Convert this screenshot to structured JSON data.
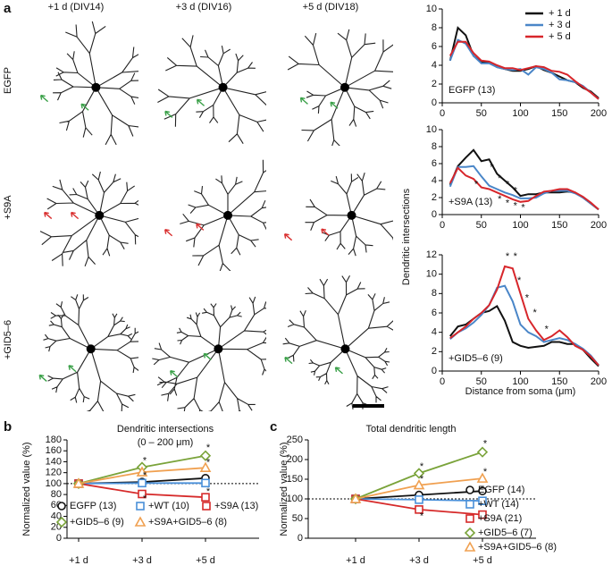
{
  "panel_labels": [
    "a",
    "b",
    "c"
  ],
  "image_panel": {
    "columns": [
      "+1 d (DIV14)",
      "+3 d (DIV16)",
      "+5 d (DIV18)"
    ],
    "rows": [
      "EGFP",
      "+S9A",
      "+GID5–6"
    ]
  },
  "chart_data": [
    {
      "type": "line",
      "annotation": "EGFP (13)",
      "legend": "upper right",
      "x": [
        10,
        20,
        30,
        40,
        50,
        60,
        70,
        80,
        90,
        100,
        110,
        120,
        130,
        140,
        150,
        160,
        170,
        180,
        190,
        200
      ],
      "xlim": [
        0,
        200
      ],
      "xticks": [
        0,
        50,
        100,
        150,
        200
      ],
      "ylim": [
        0,
        10
      ],
      "yticks": [
        0,
        2,
        4,
        6,
        8,
        10
      ],
      "series": [
        {
          "name": "+ 1 d",
          "color": "#111111",
          "values": [
            4.5,
            8,
            7.2,
            5,
            4.3,
            4.3,
            3.8,
            3.6,
            3.4,
            3.4,
            3.6,
            3.9,
            3.5,
            3.2,
            2.8,
            2.4,
            2.2,
            1.6,
            1.2,
            0.5
          ]
        },
        {
          "name": "+ 3 d",
          "color": "#4a86c8",
          "values": [
            4.5,
            6.7,
            6.3,
            5,
            4.2,
            4.2,
            3.8,
            3.6,
            3.5,
            3.6,
            3,
            3.8,
            3.6,
            3.2,
            2.5,
            2.4,
            2.2,
            1.8,
            1.1,
            0.4
          ]
        },
        {
          "name": "+ 5 d",
          "color": "#d7262b",
          "values": [
            5,
            6.5,
            6.5,
            5.3,
            4.5,
            4.4,
            4,
            3.7,
            3.7,
            3.5,
            3.7,
            3.9,
            3.8,
            3.4,
            3.3,
            3,
            2.3,
            1.7,
            1.1,
            0.4
          ]
        }
      ]
    },
    {
      "type": "line",
      "annotation": "+S9A (13)",
      "ylabel": "Dendritic intersections",
      "x": [
        10,
        20,
        30,
        40,
        50,
        60,
        70,
        80,
        90,
        100,
        110,
        120,
        130,
        140,
        150,
        160,
        170,
        180,
        190,
        200
      ],
      "xlim": [
        0,
        200
      ],
      "xticks": [
        0,
        50,
        100,
        150,
        200
      ],
      "ylim": [
        0,
        10
      ],
      "yticks": [
        0,
        2,
        4,
        6,
        8,
        10
      ],
      "series": [
        {
          "color": "#111111",
          "values": [
            3.5,
            5.7,
            6.7,
            7.6,
            6.3,
            6.5,
            4.8,
            4,
            3.2,
            2.2,
            2.4,
            2.4,
            2.6,
            2.6,
            2.6,
            2.7,
            2.6,
            2,
            1.3,
            0.6
          ]
        },
        {
          "color": "#4a86c8",
          "values": [
            3.3,
            5.6,
            5.6,
            5.7,
            4.5,
            3.4,
            3,
            2.6,
            2.3,
            1.9,
            1.9,
            2,
            2.5,
            2.8,
            2.8,
            2.8,
            2.5,
            2,
            1.3,
            0.6
          ]
        },
        {
          "color": "#d7262b",
          "values": [
            3.7,
            5.5,
            4.6,
            4.2,
            3.2,
            3,
            2.6,
            2.2,
            1.8,
            1.5,
            1.6,
            2.2,
            2.7,
            2.8,
            3,
            3,
            2.6,
            2.1,
            1.4,
            0.6
          ]
        }
      ],
      "significance": [
        {
          "text": "*",
          "x": 40,
          "y": 3.5
        },
        {
          "text": "*",
          "x": 60,
          "y": 5.5
        },
        {
          "text": "*",
          "x": 70,
          "y": 4.2
        },
        {
          "text": "*",
          "x": 70,
          "y": 1.8
        },
        {
          "text": "*",
          "x": 80,
          "y": 3.5
        },
        {
          "text": "*",
          "x": 80,
          "y": 1.3
        },
        {
          "text": "*",
          "x": 90,
          "y": 2.8
        },
        {
          "text": "*",
          "x": 90,
          "y": 1
        },
        {
          "text": "*",
          "x": 100,
          "y": 0.8
        }
      ]
    },
    {
      "type": "line",
      "annotation": "+GID5–6 (9)",
      "xlabel": "Distance from soma (μm)",
      "x": [
        10,
        20,
        30,
        40,
        50,
        60,
        70,
        80,
        90,
        100,
        110,
        120,
        130,
        140,
        150,
        160,
        170,
        180,
        190,
        200
      ],
      "xlim": [
        0,
        200
      ],
      "xticks": [
        0,
        50,
        100,
        150,
        200
      ],
      "ylim": [
        0,
        12
      ],
      "yticks": [
        0,
        2,
        4,
        6,
        8,
        10,
        12
      ],
      "series": [
        {
          "color": "#111111",
          "values": [
            3.6,
            4.6,
            4.8,
            5.4,
            6,
            6.2,
            6.7,
            5.2,
            3,
            2.6,
            2.4,
            2.5,
            2.6,
            3,
            3,
            2.8,
            2.8,
            2.2,
            1.3,
            0.5
          ]
        },
        {
          "color": "#4a86c8",
          "values": [
            3.3,
            4,
            4.4,
            5,
            5.8,
            6.8,
            8.6,
            8.8,
            7.2,
            4.8,
            4,
            3.6,
            3,
            3.2,
            3.4,
            3.2,
            2.8,
            2.3,
            1.6,
            0.6
          ]
        },
        {
          "color": "#d7262b",
          "values": [
            3.4,
            4,
            4.6,
            5.4,
            6,
            6.8,
            8.4,
            10.8,
            10.6,
            8,
            5.4,
            4.2,
            3.2,
            3.6,
            4.2,
            3.5,
            2.6,
            2.2,
            1.5,
            0.6
          ]
        }
      ],
      "significance": [
        {
          "text": "*",
          "x": 80,
          "y": 11.8
        },
        {
          "text": "*",
          "x": 90,
          "y": 11.8
        },
        {
          "text": "*",
          "x": 95,
          "y": 9.3
        },
        {
          "text": "*",
          "x": 105,
          "y": 7.5
        },
        {
          "text": "*",
          "x": 115,
          "y": 6
        },
        {
          "text": "*",
          "x": 130,
          "y": 4.3
        }
      ]
    },
    {
      "type": "line",
      "title": "Dendritic intersections",
      "subtitle": "(0 – 200 μm)",
      "ylabel": "Normalized value (%)",
      "categories": [
        "+1 d",
        "+3 d",
        "+5 d"
      ],
      "ylim": [
        0,
        180
      ],
      "yticks": [
        0,
        20,
        40,
        60,
        80,
        100,
        120,
        140,
        160,
        180
      ],
      "reference_line": 100,
      "legend": "lower center",
      "series": [
        {
          "name": "EGFP (13)",
          "color": "#111111",
          "marker": "circle",
          "values": [
            100,
            103,
            110
          ]
        },
        {
          "name": "+WT (10)",
          "color": "#4a90d9",
          "marker": "square",
          "values": [
            100,
            101,
            101
          ]
        },
        {
          "name": "+S9A (13)",
          "color": "#d62a2a",
          "marker": "square",
          "values": [
            100,
            81,
            75
          ]
        },
        {
          "name": "+GID5–6 (9)",
          "color": "#7aa33a",
          "marker": "diamond",
          "values": [
            100,
            130,
            151
          ]
        },
        {
          "name": "+S9A+GID5–6 (8)",
          "color": "#f0a050",
          "marker": "triangle",
          "values": [
            100,
            121,
            129
          ]
        }
      ],
      "significance": [
        {
          "text": "*",
          "x": "+3 d",
          "y": 141
        },
        {
          "text": "*",
          "x": "+3 d",
          "y": 114
        },
        {
          "text": "*",
          "x": "+3 d",
          "y": 72
        },
        {
          "text": "*",
          "x": "+5 d",
          "y": 165
        },
        {
          "text": "*",
          "x": "+5 d",
          "y": 138
        },
        {
          "text": "*",
          "x": "+5 d",
          "y": 85
        }
      ]
    },
    {
      "type": "line",
      "title": "Total dendritic length",
      "ylabel": "Normalized value (%)",
      "categories": [
        "+1 d",
        "+3 d",
        "+5 d"
      ],
      "ylim": [
        0,
        250
      ],
      "yticks": [
        0,
        50,
        100,
        150,
        200,
        250
      ],
      "reference_line": 100,
      "legend": "right",
      "series": [
        {
          "name": "EGFP (14)",
          "color": "#111111",
          "marker": "circle",
          "values": [
            100,
            110,
            120
          ]
        },
        {
          "name": "+WT (14)",
          "color": "#4a90d9",
          "marker": "square",
          "values": [
            100,
            98,
            95
          ]
        },
        {
          "name": "+S9A (21)",
          "color": "#d62a2a",
          "marker": "square",
          "values": [
            100,
            73,
            60
          ]
        },
        {
          "name": "+GID5–6 (7)",
          "color": "#7aa33a",
          "marker": "diamond",
          "values": [
            100,
            165,
            219
          ]
        },
        {
          "name": "+S9A+GID5–6 (8)",
          "color": "#f0a050",
          "marker": "triangle",
          "values": [
            100,
            135,
            152
          ]
        }
      ],
      "significance": [
        {
          "text": "*",
          "x": "+3 d",
          "y": 182
        },
        {
          "text": "*",
          "x": "+3 d",
          "y": 150
        },
        {
          "text": "*",
          "x": "+3 d",
          "y": 56
        },
        {
          "text": "*",
          "x": "+5 d",
          "y": 240
        },
        {
          "text": "*",
          "x": "+5 d",
          "y": 168
        },
        {
          "text": "*",
          "x": "+5 d",
          "y": 45
        }
      ]
    }
  ]
}
